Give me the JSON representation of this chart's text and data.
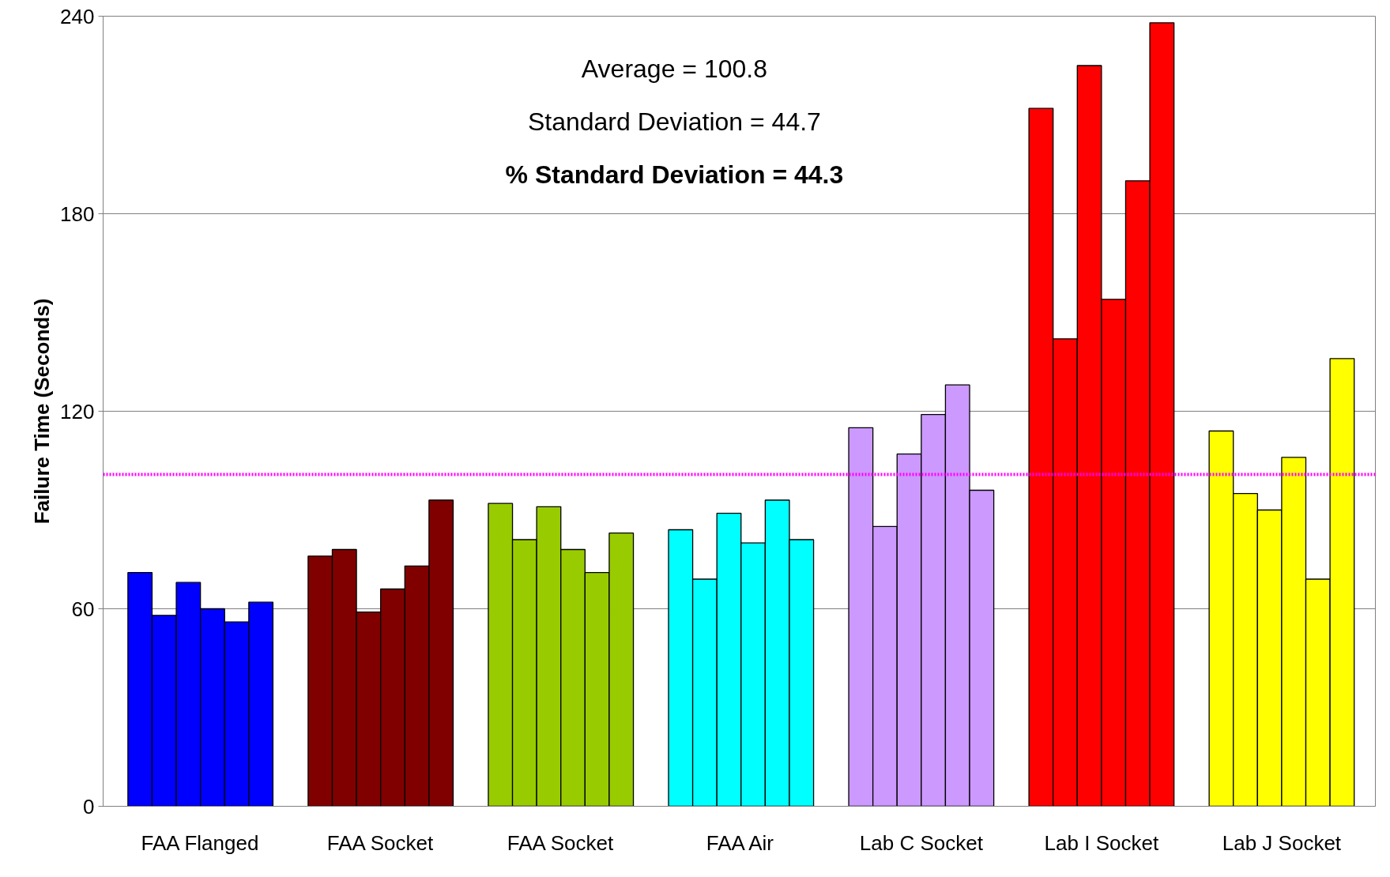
{
  "chart_data": {
    "type": "bar",
    "ylabel": "Failure Time (Seconds)",
    "categories": [
      "FAA Flanged",
      "FAA Socket",
      "FAA Socket",
      "FAA Air",
      "Lab C Socket",
      "Lab I Socket",
      "Lab J Socket"
    ],
    "series": [
      {
        "colors": [
          "#0000ff",
          "#800000",
          "#99cc00",
          "#00ffff",
          "#cc99ff",
          "#ff0000",
          "#ffff00"
        ],
        "values": [
          71,
          76,
          92,
          84,
          115,
          212,
          114
        ]
      },
      {
        "colors": [
          "#0000ff",
          "#800000",
          "#99cc00",
          "#00ffff",
          "#cc99ff",
          "#ff0000",
          "#ffff00"
        ],
        "values": [
          58,
          78,
          81,
          69,
          85,
          142,
          95
        ]
      },
      {
        "colors": [
          "#0000ff",
          "#800000",
          "#99cc00",
          "#00ffff",
          "#cc99ff",
          "#ff0000",
          "#ffff00"
        ],
        "values": [
          68,
          59,
          91,
          89,
          107,
          225,
          90
        ]
      },
      {
        "colors": [
          "#0000ff",
          "#800000",
          "#99cc00",
          "#00ffff",
          "#cc99ff",
          "#ff0000",
          "#ffff00"
        ],
        "values": [
          60,
          66,
          78,
          80,
          119,
          154,
          106
        ]
      },
      {
        "colors": [
          "#0000ff",
          "#800000",
          "#99cc00",
          "#00ffff",
          "#cc99ff",
          "#ff0000",
          "#ffff00"
        ],
        "values": [
          56,
          73,
          71,
          93,
          128,
          190,
          69
        ]
      },
      {
        "colors": [
          "#0000ff",
          "#800000",
          "#99cc00",
          "#00ffff",
          "#cc99ff",
          "#ff0000",
          "#ffff00"
        ],
        "values": [
          62,
          93,
          83,
          81,
          96,
          238,
          136
        ]
      }
    ],
    "ylim": [
      0,
      240
    ],
    "yticks": [
      0,
      60,
      120,
      180,
      240
    ],
    "grid": "y",
    "ref_lines": [
      {
        "axis": "y",
        "value": 100.8,
        "color": "#ff00ff",
        "line_style": "dotted"
      }
    ],
    "annotations": [
      "Average = 100.8",
      "Standard Deviation = 44.7",
      "% Standard Deviation = 44.3"
    ]
  }
}
